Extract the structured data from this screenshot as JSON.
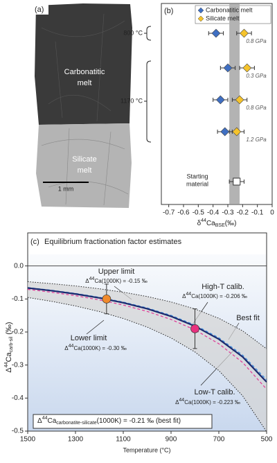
{
  "panel_a": {
    "label": "(a)",
    "top_melt": [
      "Carbonatitic",
      "melt"
    ],
    "bottom_melt": [
      "Silicate",
      "melt"
    ],
    "scale_bar": "1 mm"
  },
  "chart_data": [
    {
      "type": "dot",
      "label": "(b)",
      "xlabel": [
        "δ",
        "44",
        "Ca",
        "BSE",
        "(‰)"
      ],
      "xlim": [
        -0.75,
        0
      ],
      "xticks": [
        -0.7,
        -0.6,
        -0.5,
        -0.4,
        -0.3,
        -0.2,
        -0.1,
        0
      ],
      "bse_band": [
        -0.29,
        -0.22
      ],
      "group_labels": [
        "800 °C",
        "1170 °C"
      ],
      "categories": [
        "0.8 GPa",
        "0.3 GPa",
        "0.8 GPa",
        "1.2 GPa"
      ],
      "series": [
        {
          "name": "Carbonatitic melt",
          "color": "#3f6fc2",
          "values": [
            -0.38,
            -0.3,
            -0.35,
            -0.32
          ],
          "errors": [
            0.05,
            0.05,
            0.05,
            0.05
          ]
        },
        {
          "name": "Silicate melt",
          "color": "#f5c32c",
          "values": [
            -0.19,
            -0.17,
            -0.22,
            -0.24
          ],
          "errors": [
            0.05,
            0.05,
            0.05,
            0.05
          ]
        }
      ],
      "reference": {
        "name": [
          "Starting",
          "material"
        ],
        "value": -0.24,
        "error": 0.05,
        "color": "#ffffff"
      }
    },
    {
      "type": "line",
      "label": "(c)",
      "title": "Equilibrium fractionation factor estimates",
      "xlabel": "Temperature (°C)",
      "ylabel": [
        "Δ",
        "44",
        "Ca",
        "carb-sil",
        " (‰)"
      ],
      "x": [
        1500,
        1400,
        1300,
        1200,
        1100,
        1000,
        900,
        800,
        700,
        600,
        500
      ],
      "xlim": [
        1500,
        500
      ],
      "xticks": [
        1500,
        1300,
        1100,
        900,
        700,
        500
      ],
      "ylim": [
        -0.5,
        0.1
      ],
      "yticks": [
        {
          "value": 0,
          "label": "0.0"
        },
        -0.1,
        -0.2,
        -0.3,
        -0.4,
        -0.5
      ],
      "series": [
        {
          "name": "Upper limit",
          "note": [
            "Δ",
            "44",
            "Ca(1000K) = -0.15 ‰"
          ],
          "color": "#222222",
          "style": "dotted",
          "values": [
            -0.0477,
            -0.0536,
            -0.0606,
            -0.0691,
            -0.0796,
            -0.0925,
            -0.109,
            -0.1302,
            -0.1584,
            -0.1967,
            -0.2509
          ]
        },
        {
          "name": "Lower limit",
          "note": [
            "Δ",
            "44",
            "Ca(1000K) = -0.30 ‰"
          ],
          "color": "#222222",
          "style": "dotted",
          "values": [
            -0.0954,
            -0.1072,
            -0.1212,
            -0.1382,
            -0.1591,
            -0.1851,
            -0.218,
            -0.2605,
            -0.3168,
            -0.3935,
            -0.5019
          ]
        },
        {
          "name": "High-T calib.",
          "note": [
            "Δ",
            "44",
            "Ca(1000K) = -0.206 ‰"
          ],
          "color": "#3b8fe0",
          "style": "dashed",
          "values": [
            -0.0655,
            -0.0736,
            -0.0832,
            -0.0949,
            -0.1093,
            -0.1271,
            -0.1497,
            -0.1789,
            -0.2175,
            -0.2702,
            -0.3446
          ]
        },
        {
          "name": "Low-T calib.",
          "note": [
            "Δ",
            "44",
            "Ca(1000K) = -0.223 ‰"
          ],
          "color": "#e0409a",
          "style": "dashed",
          "values": [
            -0.0709,
            -0.0797,
            -0.0901,
            -0.1028,
            -0.1183,
            -0.1376,
            -0.162,
            -0.1936,
            -0.2355,
            -0.2925,
            -0.3731
          ]
        },
        {
          "name": "Best fit",
          "color": "#1c2a6e",
          "style": "solid",
          "values": [
            -0.0668,
            -0.075,
            -0.0849,
            -0.0968,
            -0.1114,
            -0.1296,
            -0.1526,
            -0.1823,
            -0.2217,
            -0.2754,
            -0.3513
          ]
        }
      ],
      "points": [
        {
          "x": 1170,
          "value": -0.1,
          "error": 0.045,
          "color": "#f08a2c"
        },
        {
          "x": 800,
          "value": -0.19,
          "error": 0.06,
          "color": "#e8327f"
        }
      ],
      "result": [
        "Δ",
        "44",
        "Ca",
        "carbonatite-silicate",
        "(1000K) = -0.21 ‰ (best fit)"
      ]
    }
  ]
}
